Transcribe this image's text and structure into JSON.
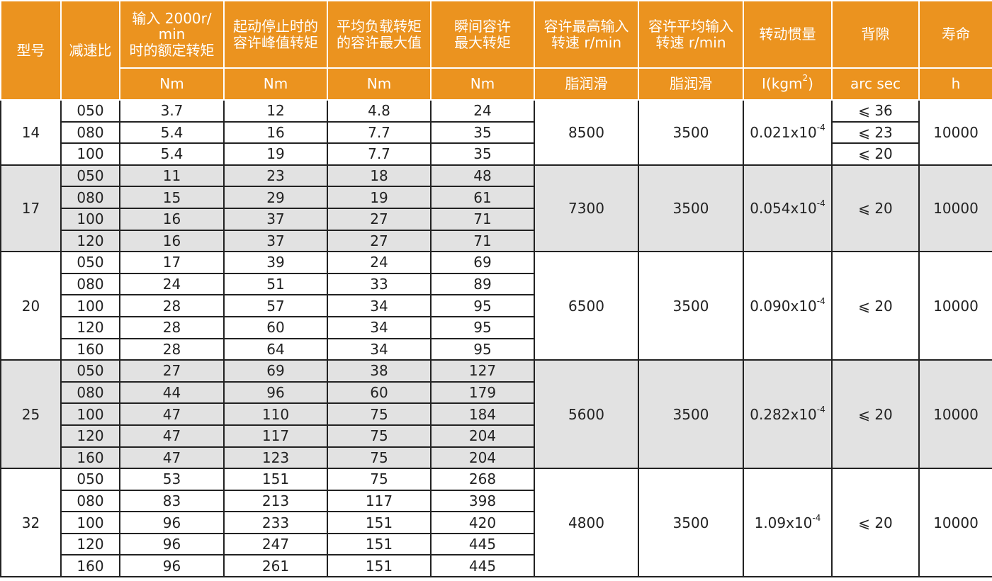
{
  "header": {
    "columns": [
      {
        "lines": [
          "型号"
        ]
      },
      {
        "lines": [
          "减速比"
        ]
      },
      {
        "lines": [
          "输入 2000r/",
          "min",
          "时的额定转矩"
        ]
      },
      {
        "lines": [
          "起动停止时的",
          "容许峰值转矩"
        ]
      },
      {
        "lines": [
          "平均负载转矩",
          "的容许最大值"
        ]
      },
      {
        "lines": [
          "瞬间容许",
          "最大转矩"
        ]
      },
      {
        "lines": [
          "容许最高输入",
          "转速 r/min"
        ]
      },
      {
        "lines": [
          "容许平均输入",
          "转速 r/min"
        ]
      },
      {
        "lines": [
          "转动惯量"
        ]
      },
      {
        "lines": [
          "背隙"
        ]
      },
      {
        "lines": [
          "寿命"
        ]
      }
    ],
    "units": [
      {
        "text": "Nm"
      },
      {
        "text": "Nm"
      },
      {
        "text": "Nm"
      },
      {
        "text": "Nm"
      },
      {
        "text": "脂润滑"
      },
      {
        "text": "脂润滑"
      },
      {
        "text": "I(kgm",
        "sup": "2",
        "close": ")"
      },
      {
        "text": "arc sec"
      },
      {
        "text": "h"
      }
    ]
  },
  "groups": [
    {
      "model": "14",
      "max_speed": "8500",
      "avg_speed": "3500",
      "inertia": {
        "base": "0.021x10",
        "exp": "-4"
      },
      "backlash": [
        "⩽ 36",
        "⩽ 23",
        "⩽ 20"
      ],
      "life": "10000",
      "rows": [
        [
          "050",
          "3.7",
          "12",
          "4.8",
          "24"
        ],
        [
          "080",
          "5.4",
          "16",
          "7.7",
          "35"
        ],
        [
          "100",
          "5.4",
          "19",
          "7.7",
          "35"
        ]
      ]
    },
    {
      "model": "17",
      "max_speed": "7300",
      "avg_speed": "3500",
      "inertia": {
        "base": "0.054x10",
        "exp": "-4"
      },
      "backlash": [
        "⩽ 20"
      ],
      "life": "10000",
      "rows": [
        [
          "050",
          "11",
          "23",
          "18",
          "48"
        ],
        [
          "080",
          "15",
          "29",
          "19",
          "61"
        ],
        [
          "100",
          "16",
          "37",
          "27",
          "71"
        ],
        [
          "120",
          "16",
          "37",
          "27",
          "71"
        ]
      ]
    },
    {
      "model": "20",
      "max_speed": "6500",
      "avg_speed": "3500",
      "inertia": {
        "base": "0.090x10",
        "exp": "-4"
      },
      "backlash": [
        "⩽ 20"
      ],
      "life": "10000",
      "rows": [
        [
          "050",
          "17",
          "39",
          "24",
          "69"
        ],
        [
          "080",
          "24",
          "51",
          "33",
          "89"
        ],
        [
          "100",
          "28",
          "57",
          "34",
          "95"
        ],
        [
          "120",
          "28",
          "60",
          "34",
          "95"
        ],
        [
          "160",
          "28",
          "64",
          "34",
          "95"
        ]
      ]
    },
    {
      "model": "25",
      "max_speed": "5600",
      "avg_speed": "3500",
      "inertia": {
        "base": "0.282x10",
        "exp": "-4"
      },
      "backlash": [
        "⩽ 20"
      ],
      "life": "10000",
      "rows": [
        [
          "050",
          "27",
          "69",
          "38",
          "127"
        ],
        [
          "080",
          "44",
          "96",
          "60",
          "179"
        ],
        [
          "100",
          "47",
          "110",
          "75",
          "184"
        ],
        [
          "120",
          "47",
          "117",
          "75",
          "204"
        ],
        [
          "160",
          "47",
          "123",
          "75",
          "204"
        ]
      ]
    },
    {
      "model": "32",
      "max_speed": "4800",
      "avg_speed": "3500",
      "inertia": {
        "base": "1.09x10",
        "exp": "-4"
      },
      "backlash": [
        "⩽ 20"
      ],
      "life": "10000",
      "rows": [
        [
          "050",
          "53",
          "151",
          "75",
          "268"
        ],
        [
          "080",
          "83",
          "213",
          "117",
          "398"
        ],
        [
          "100",
          "96",
          "233",
          "151",
          "420"
        ],
        [
          "120",
          "96",
          "247",
          "151",
          "445"
        ],
        [
          "160",
          "96",
          "261",
          "151",
          "445"
        ]
      ]
    }
  ]
}
